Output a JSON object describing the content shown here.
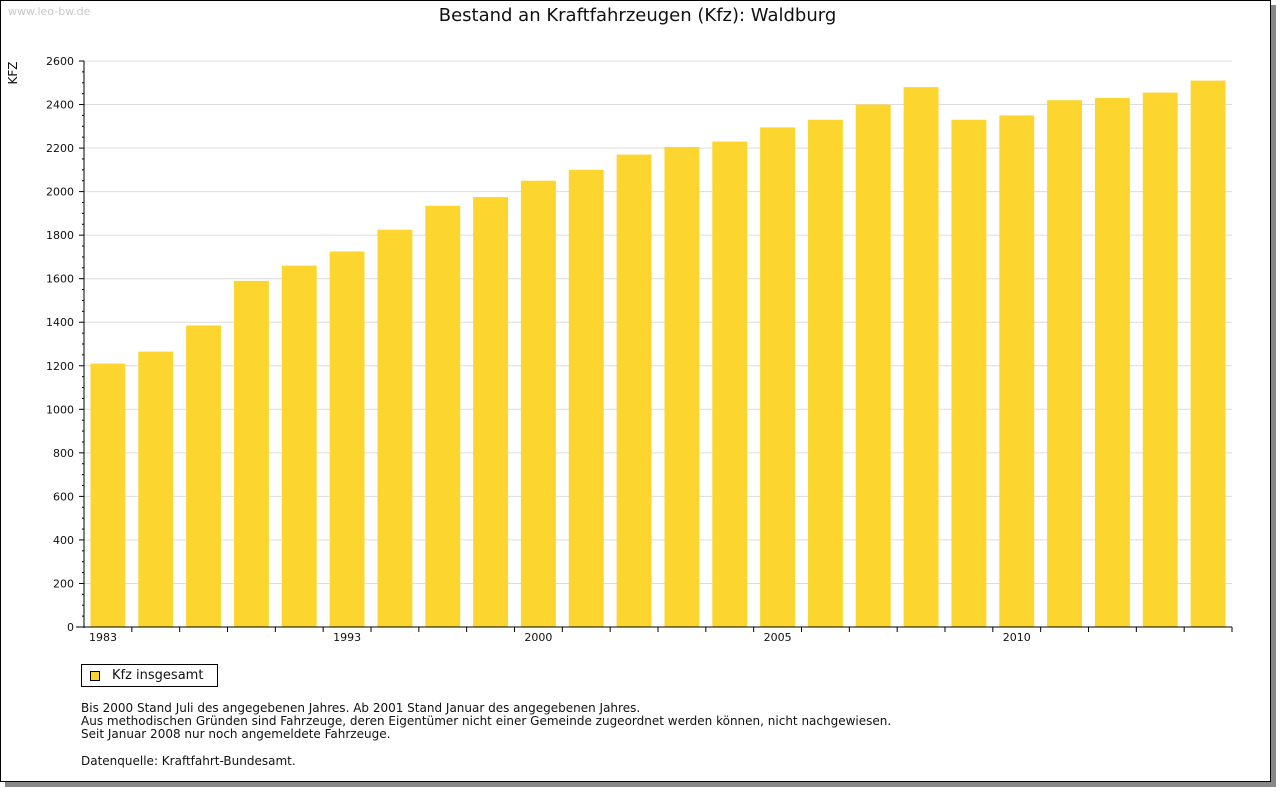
{
  "watermark": "www.leo-bw.de",
  "chart_data": {
    "type": "bar",
    "title": "Bestand an Kraftfahrzeugen (Kfz): Waldburg",
    "ylabel": "KFZ",
    "xlabel": "",
    "ylim": [
      0,
      2600
    ],
    "y_ticks": [
      0,
      200,
      400,
      600,
      800,
      1000,
      1200,
      1400,
      1600,
      1800,
      2000,
      2200,
      2400,
      2600
    ],
    "x_tick_labels": [
      "1983",
      "1993",
      "2000",
      "2005",
      "2010"
    ],
    "categories": [
      "1983",
      "1985",
      "1987",
      "1989",
      "1991",
      "1993",
      "1995",
      "1997",
      "1999",
      "2000",
      "2001",
      "2002",
      "2003",
      "2004",
      "2005",
      "2006",
      "2007",
      "2008",
      "2009",
      "2010",
      "2011",
      "2012",
      "2013",
      "2014"
    ],
    "series": [
      {
        "name": "Kfz insgesamt",
        "color": "#fcd62f",
        "values": [
          1210,
          1265,
          1385,
          1590,
          1660,
          1725,
          1825,
          1935,
          1975,
          2050,
          2100,
          2170,
          2205,
          2230,
          2295,
          2330,
          2400,
          2480,
          2330,
          2350,
          2420,
          2430,
          2455,
          2510
        ]
      }
    ],
    "grid": true,
    "legend": "bottom-left"
  },
  "notes": [
    "Bis 2000 Stand Juli des angegebenen Jahres. Ab 2001 Stand Januar des angegebenen Jahres.",
    "Aus methodischen Gründen sind Fahrzeuge, deren Eigentümer nicht einer Gemeinde zugeordnet werden können, nicht nachgewiesen.",
    "Seit Januar 2008 nur noch angemeldete Fahrzeuge."
  ],
  "source": "Datenquelle: Kraftfahrt-Bundesamt."
}
